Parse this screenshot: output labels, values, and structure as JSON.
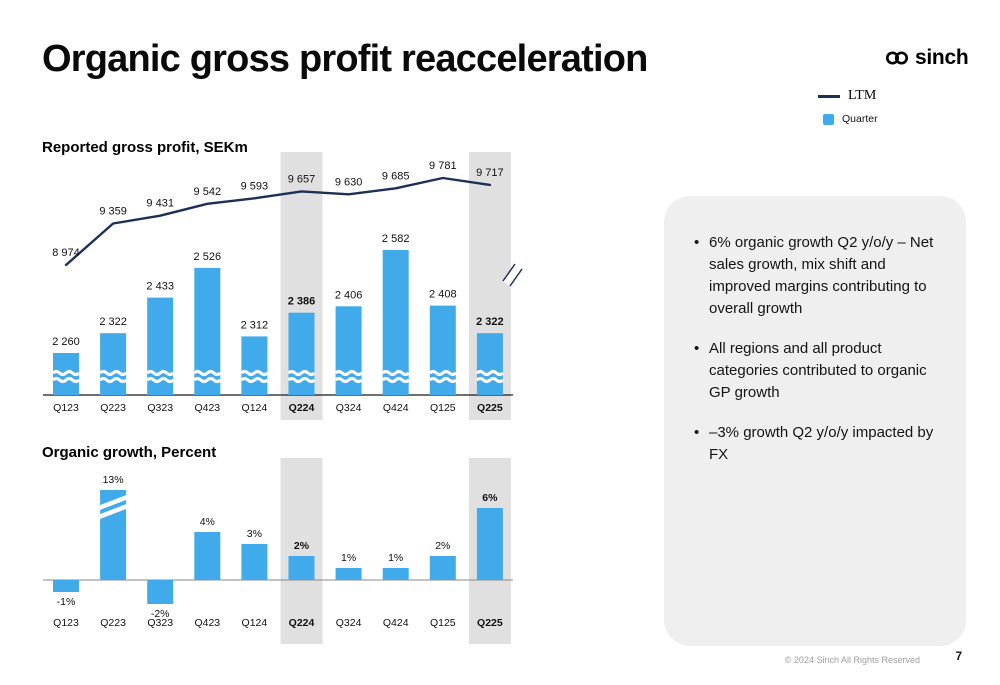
{
  "slide": {
    "title": "Organic gross profit reacceleration",
    "footer": "© 2024 Sinch All Rights Reserved",
    "page_number": "7"
  },
  "logo": {
    "text": "sinch"
  },
  "legend": {
    "ltm": "LTM",
    "quarter": "Quarter"
  },
  "colors": {
    "bar": "#41AAEB",
    "line": "#1C3055",
    "highlight": "#E0E0E0",
    "card_bg": "#EFEFEF"
  },
  "chart_data": [
    {
      "type": "bar+line",
      "title": "Reported gross profit, SEKm",
      "categories": [
        "Q123",
        "Q223",
        "Q323",
        "Q423",
        "Q124",
        "Q224",
        "Q324",
        "Q424",
        "Q125",
        "Q225"
      ],
      "highlight_categories": [
        "Q224",
        "Q225"
      ],
      "axis_break": true,
      "legend_position": "top-right",
      "series": [
        {
          "name": "Quarter",
          "type": "bar",
          "values": [
            2260,
            2322,
            2433,
            2526,
            2312,
            2386,
            2406,
            2582,
            2408,
            2322
          ],
          "labels": [
            "2 260",
            "2 322",
            "2 433",
            "2 526",
            "2 312",
            "2 386",
            "2 406",
            "2 582",
            "2 408",
            "2 322"
          ]
        },
        {
          "name": "LTM",
          "type": "line",
          "values": [
            8974,
            9359,
            9431,
            9542,
            9593,
            9657,
            9630,
            9685,
            9781,
            9717
          ],
          "labels": [
            "8 974",
            "9 359",
            "9 431",
            "9 542",
            "9 593",
            "9 657",
            "9 630",
            "9 685",
            "9 781",
            "9 717"
          ]
        }
      ]
    },
    {
      "type": "bar",
      "title": "Organic growth, Percent",
      "categories": [
        "Q123",
        "Q223",
        "Q323",
        "Q423",
        "Q124",
        "Q224",
        "Q324",
        "Q424",
        "Q125",
        "Q225"
      ],
      "highlight_categories": [
        "Q224",
        "Q225"
      ],
      "values": [
        -1,
        13,
        -2,
        4,
        3,
        2,
        1,
        1,
        2,
        6
      ],
      "labels": [
        "-1%",
        "13%",
        "-2%",
        "4%",
        "3%",
        "2%",
        "1%",
        "1%",
        "2%",
        "6%"
      ],
      "broken_bar_category": "Q223",
      "ylabel": "Percent"
    }
  ],
  "card": {
    "bullets": [
      "6% organic growth Q2 y/o/y – Net sales growth, mix shift and improved margins contributing to overall growth",
      "All regions and all product categories contributed to organic GP growth",
      "–3% growth Q2 y/o/y impacted by FX"
    ]
  }
}
